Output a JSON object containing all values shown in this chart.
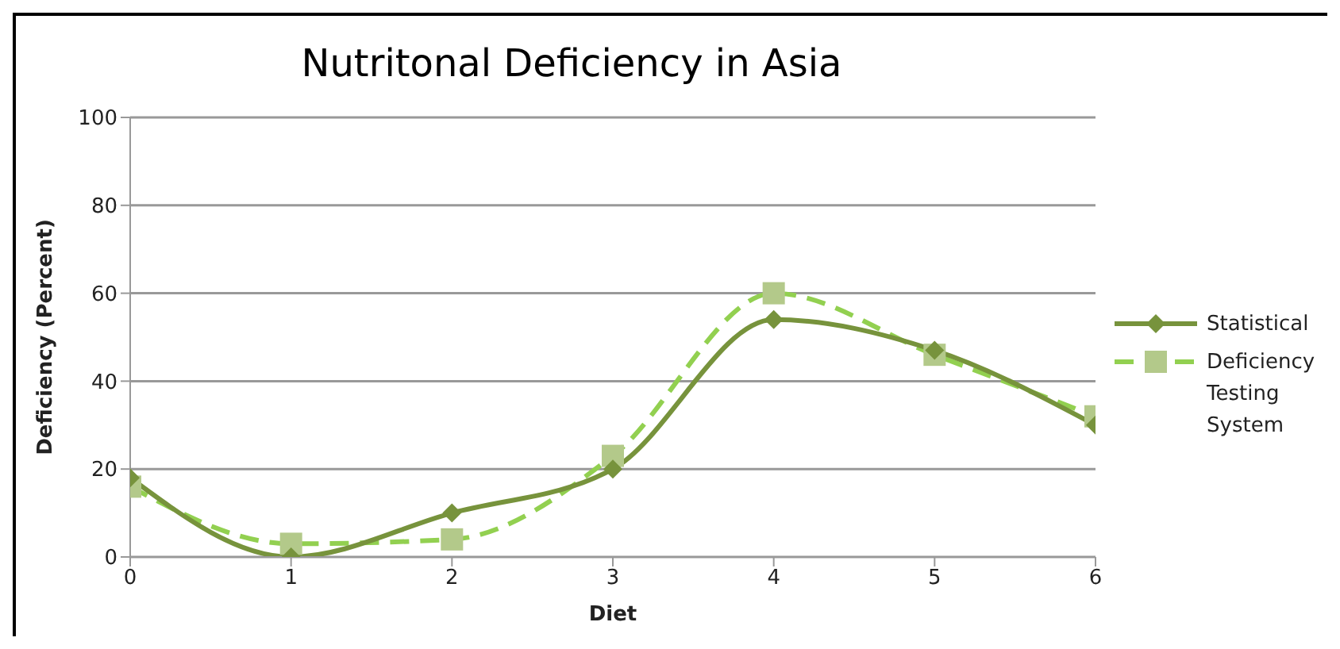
{
  "chart_data": {
    "type": "line",
    "title": "Nutritonal Deficiency in Asia",
    "xlabel": "Diet",
    "ylabel": "Deficiency (Percent)",
    "x": [
      0,
      1,
      2,
      3,
      4,
      5,
      6
    ],
    "series": [
      {
        "name": "Statistical",
        "color": "#77933c",
        "values": [
          18,
          0,
          10,
          20,
          54,
          47,
          30
        ],
        "marker": "diamond",
        "line_style": "solid"
      },
      {
        "name": "Deficiency Testing System",
        "color": "#92d050",
        "values": [
          16,
          3,
          4,
          23,
          60,
          46,
          32
        ],
        "marker": "square",
        "line_style": "dashed"
      }
    ],
    "xlim": [
      0,
      6
    ],
    "xticks": [
      0,
      1,
      2,
      3,
      4,
      5,
      6
    ],
    "ylim": [
      0,
      100
    ],
    "yticks": [
      0,
      20,
      40,
      60,
      80,
      100
    ],
    "grid": "y",
    "legend": "right"
  }
}
